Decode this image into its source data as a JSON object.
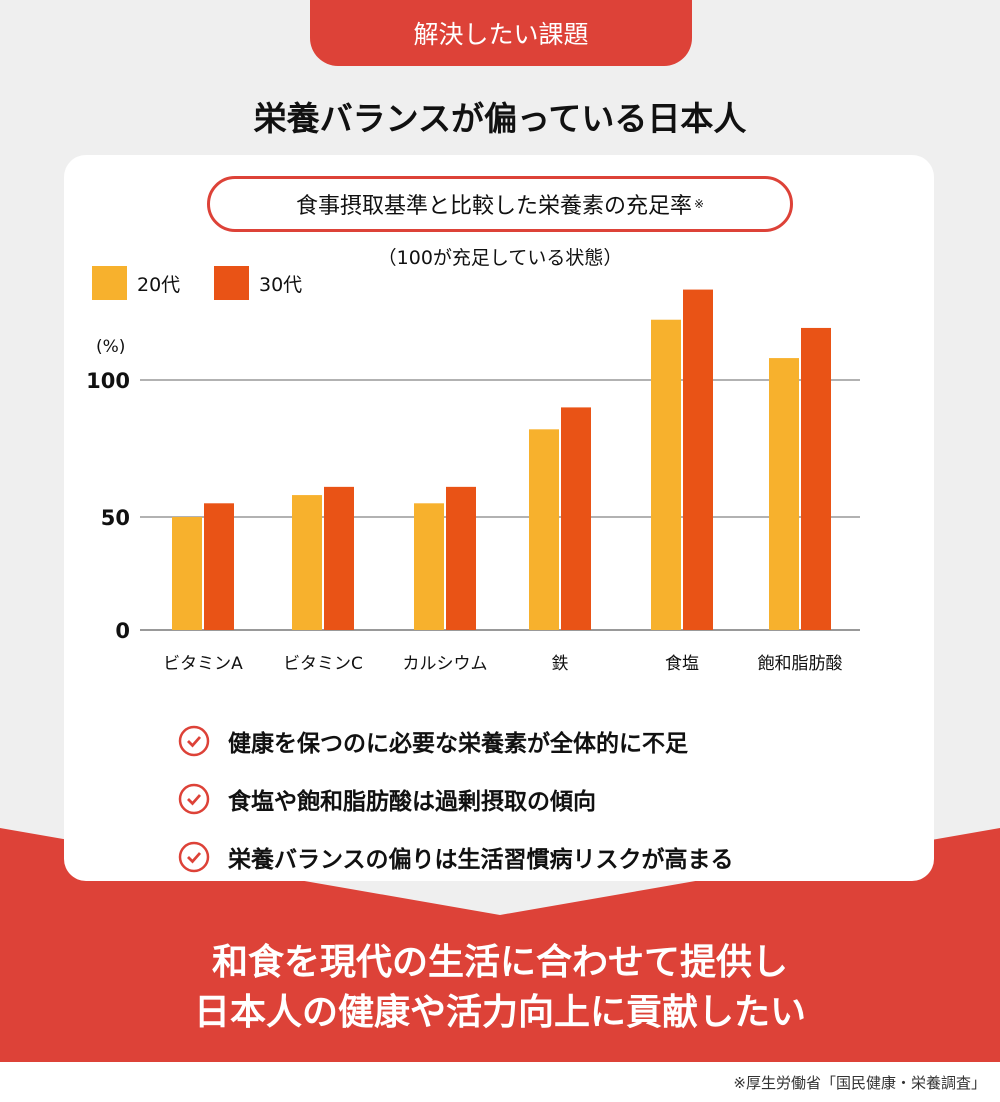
{
  "header": {
    "tab_label": "解決したい課題",
    "title": "栄養バランスが偏っている日本人"
  },
  "colors": {
    "red": "#dd4238",
    "orange": "#f7b12d",
    "deep_orange": "#e95316"
  },
  "chart_data": {
    "type": "bar",
    "title": "食事摂取基準と比較した栄養素の充足率",
    "title_mark": "※",
    "subtitle": "（100が充足している状態）",
    "ylabel": "(%)",
    "yticks": [
      "0",
      "50",
      "100"
    ],
    "ylim": [
      0,
      135
    ],
    "grid": true,
    "legend_position": "top-left",
    "categories": [
      "ビタミンA",
      "ビタミンC",
      "カルシウム",
      "鉄",
      "食塩",
      "飽和脂肪酸"
    ],
    "series": [
      {
        "name": "20代",
        "color": "#f7b12d",
        "values": [
          50,
          58,
          55,
          82,
          122,
          108
        ]
      },
      {
        "name": "30代",
        "color": "#e95316",
        "values": [
          55,
          61,
          61,
          90,
          133,
          119
        ]
      }
    ]
  },
  "checks": [
    "健康を保つのに必要な栄養素が全体的に不足",
    "食塩や飽和脂肪酸は過剰摂取の傾向",
    "栄養バランスの偏りは生活習慣病リスクが高まる"
  ],
  "bottom": {
    "line1": "和食を現代の生活に合わせて提供し",
    "line2": "日本人の健康や活力向上に貢献したい"
  },
  "footnote": "※厚生労働省「国民健康・栄養調査」"
}
